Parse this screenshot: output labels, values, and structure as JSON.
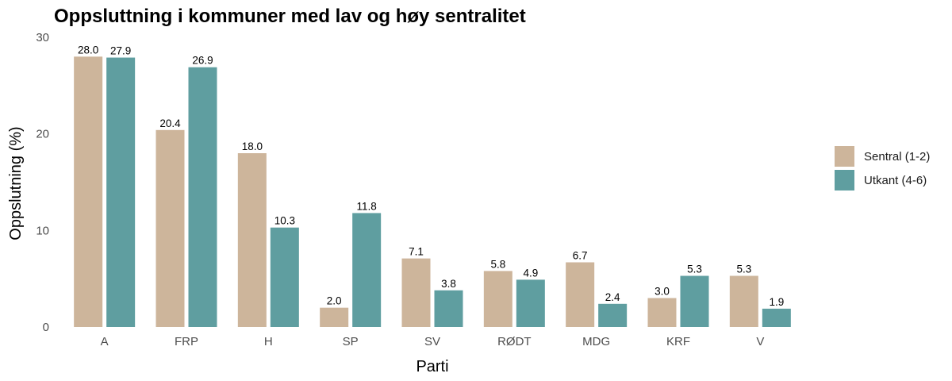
{
  "chart_data": {
    "type": "bar",
    "title": "Oppsluttning i kommuner med lav og høy sentralitet",
    "xlabel": "Parti",
    "ylabel": "Oppslutning (%)",
    "ylim": [
      0,
      30
    ],
    "yticks": [
      0,
      10,
      20,
      30
    ],
    "grid": false,
    "legend_position": "right",
    "categories": [
      "A",
      "FRP",
      "H",
      "SP",
      "SV",
      "RØDT",
      "MDG",
      "KRF",
      "V"
    ],
    "series": [
      {
        "name": "Sentral (1-2)",
        "color": "#CDB59B",
        "values": [
          28.0,
          20.4,
          18.0,
          2.0,
          7.1,
          5.8,
          6.7,
          3.0,
          5.3
        ],
        "labels": [
          "28.0",
          "20.4",
          "18.0",
          "2.0",
          "7.1",
          "5.8",
          "6.7",
          "3.0",
          "5.3"
        ]
      },
      {
        "name": "Utkant (4-6)",
        "color": "#5F9EA0",
        "values": [
          27.9,
          26.9,
          10.3,
          11.8,
          3.8,
          4.9,
          2.4,
          5.3,
          1.9
        ],
        "labels": [
          "27.9",
          "26.9",
          "10.3",
          "11.8",
          "3.8",
          "4.9",
          "2.4",
          "5.3",
          "1.9"
        ]
      }
    ]
  }
}
